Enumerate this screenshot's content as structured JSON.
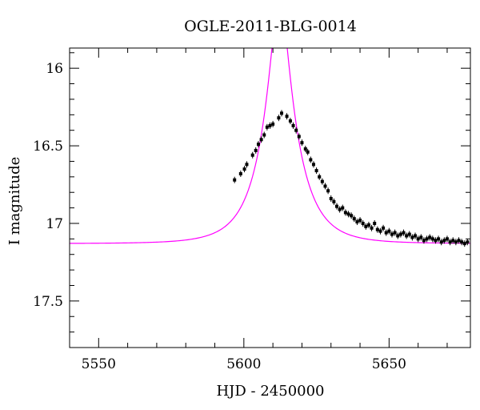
{
  "chart_data": {
    "type": "scatter",
    "title": "OGLE-2011-BLG-0014",
    "xlabel": "HJD - 2450000",
    "ylabel": "I magnitude",
    "xlim": [
      5540,
      5678
    ],
    "ylim": [
      17.8,
      15.87
    ],
    "y_inverted": true,
    "grid": false,
    "x_major_ticks": [
      5550,
      5600,
      5650
    ],
    "x_tick_labels": [
      "5550",
      "5600",
      "5650"
    ],
    "x_minor_step": 10,
    "y_major_ticks": [
      16,
      16.5,
      17,
      17.5
    ],
    "y_tick_labels": [
      "16",
      "16.5",
      "17",
      "17.5"
    ],
    "y_minor_step": 0.1,
    "model_color": "#ff00ff",
    "point_color": "#000000",
    "model": {
      "name": "",
      "t0": 5612.3,
      "tE": 11.6,
      "u0": 0.234,
      "baseline_mag": 17.13,
      "blend_fraction": 1.0
    },
    "points": [
      [
        5596.8,
        16.72
      ],
      [
        5598.9,
        16.68
      ],
      [
        5600.2,
        16.65
      ],
      [
        5601.0,
        16.62
      ],
      [
        5603.0,
        16.56
      ],
      [
        5604.1,
        16.53
      ],
      [
        5605.0,
        16.49
      ],
      [
        5606.0,
        16.46
      ],
      [
        5607.0,
        16.43
      ],
      [
        5608.0,
        16.38
      ],
      [
        5609.0,
        16.37
      ],
      [
        5610.0,
        16.36
      ],
      [
        5612.0,
        16.32
      ],
      [
        5613.0,
        16.29
      ],
      [
        5614.8,
        16.31
      ],
      [
        5616.0,
        16.34
      ],
      [
        5617.0,
        16.37
      ],
      [
        5618.0,
        16.4
      ],
      [
        5619.0,
        16.44
      ],
      [
        5620.0,
        16.48
      ],
      [
        5621.2,
        16.52
      ],
      [
        5622.0,
        16.54
      ],
      [
        5623.0,
        16.59
      ],
      [
        5624.0,
        16.62
      ],
      [
        5625.0,
        16.66
      ],
      [
        5626.0,
        16.7
      ],
      [
        5627.0,
        16.73
      ],
      [
        5628.0,
        16.76
      ],
      [
        5629.0,
        16.79
      ],
      [
        5630.0,
        16.84
      ],
      [
        5631.0,
        16.86
      ],
      [
        5632.0,
        16.89
      ],
      [
        5633.0,
        16.91
      ],
      [
        5634.0,
        16.9
      ],
      [
        5635.0,
        16.93
      ],
      [
        5636.0,
        16.94
      ],
      [
        5637.0,
        16.95
      ],
      [
        5638.0,
        16.97
      ],
      [
        5639.0,
        16.99
      ],
      [
        5640.0,
        16.98
      ],
      [
        5641.0,
        17.0
      ],
      [
        5642.0,
        17.02
      ],
      [
        5643.0,
        17.01
      ],
      [
        5644.0,
        17.03
      ],
      [
        5645.0,
        17.0
      ],
      [
        5646.0,
        17.04
      ],
      [
        5647.0,
        17.05
      ],
      [
        5648.0,
        17.03
      ],
      [
        5649.0,
        17.06
      ],
      [
        5650.0,
        17.05
      ],
      [
        5651.0,
        17.07
      ],
      [
        5652.0,
        17.06
      ],
      [
        5653.0,
        17.08
      ],
      [
        5654.0,
        17.07
      ],
      [
        5655.0,
        17.06
      ],
      [
        5656.0,
        17.08
      ],
      [
        5657.0,
        17.07
      ],
      [
        5658.0,
        17.09
      ],
      [
        5659.0,
        17.08
      ],
      [
        5660.0,
        17.1
      ],
      [
        5661.0,
        17.09
      ],
      [
        5662.0,
        17.11
      ],
      [
        5663.0,
        17.1
      ],
      [
        5664.0,
        17.09
      ],
      [
        5665.0,
        17.1
      ],
      [
        5666.0,
        17.11
      ],
      [
        5667.0,
        17.1
      ],
      [
        5668.0,
        17.12
      ],
      [
        5669.0,
        17.11
      ],
      [
        5670.0,
        17.1
      ],
      [
        5671.0,
        17.12
      ],
      [
        5672.0,
        17.11
      ],
      [
        5673.0,
        17.12
      ],
      [
        5674.0,
        17.11
      ],
      [
        5675.0,
        17.12
      ],
      [
        5676.0,
        17.13
      ],
      [
        5677.0,
        17.12
      ]
    ]
  }
}
